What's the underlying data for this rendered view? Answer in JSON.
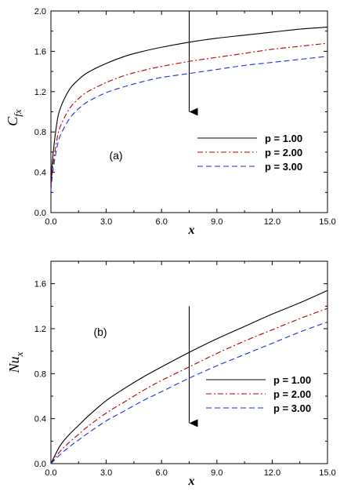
{
  "chart_data": [
    {
      "type": "line",
      "annotation": "(a)",
      "xlabel": "x",
      "ylabel": "C",
      "ylabel_sub": "fx",
      "xlim": [
        0,
        15
      ],
      "ylim": [
        0,
        2.0
      ],
      "xticks": [
        "0.0",
        "3.0",
        "6.0",
        "9.0",
        "12.0",
        "15.0"
      ],
      "yticks": [
        "0.0",
        "0.4",
        "0.8",
        "1.2",
        "1.6",
        "2.0"
      ],
      "legend_position": "center-right",
      "x": [
        0.0,
        0.1,
        0.3,
        0.5,
        1.0,
        1.5,
        2.0,
        3.0,
        4.0,
        5.0,
        6.0,
        7.5,
        9.0,
        10.5,
        12.0,
        13.5,
        15.0
      ],
      "series": [
        {
          "name": "p = 1.00",
          "color": "#000000",
          "dash": "solid",
          "values": [
            0.3,
            0.55,
            0.86,
            1.03,
            1.22,
            1.32,
            1.39,
            1.48,
            1.55,
            1.6,
            1.64,
            1.69,
            1.73,
            1.76,
            1.79,
            1.82,
            1.84
          ]
        },
        {
          "name": "p = 2.00",
          "color": "#b00000",
          "dash": "dashdot",
          "values": [
            0.25,
            0.45,
            0.7,
            0.85,
            1.03,
            1.13,
            1.2,
            1.29,
            1.36,
            1.41,
            1.45,
            1.5,
            1.54,
            1.58,
            1.62,
            1.65,
            1.68
          ]
        },
        {
          "name": "p = 3.00",
          "color": "#1a2fd8",
          "dash": "dashed",
          "values": [
            0.22,
            0.4,
            0.62,
            0.76,
            0.93,
            1.03,
            1.1,
            1.19,
            1.25,
            1.3,
            1.34,
            1.38,
            1.42,
            1.46,
            1.49,
            1.52,
            1.55
          ]
        }
      ],
      "arrow": {
        "x": 7.5,
        "y_from": 2.0,
        "y_to": 1.0
      }
    },
    {
      "type": "line",
      "annotation": "(b)",
      "xlabel": "x",
      "ylabel": "Nu",
      "ylabel_sub": "x",
      "xlim": [
        0,
        15
      ],
      "ylim": [
        0,
        1.8
      ],
      "xticks": [
        "0.0",
        "3.0",
        "6.0",
        "9.0",
        "12.0",
        "15.0"
      ],
      "yticks": [
        "0.0",
        "0.4",
        "0.8",
        "1.2",
        "1.6"
      ],
      "legend_position": "lower-right",
      "x": [
        0.0,
        0.5,
        1.0,
        1.5,
        2.0,
        3.0,
        4.0,
        5.0,
        6.0,
        7.5,
        9.0,
        10.5,
        12.0,
        13.5,
        15.0
      ],
      "series": [
        {
          "name": "p = 1.00",
          "color": "#000000",
          "dash": "solid",
          "values": [
            0.0,
            0.16,
            0.26,
            0.34,
            0.42,
            0.56,
            0.67,
            0.77,
            0.86,
            0.99,
            1.11,
            1.22,
            1.33,
            1.43,
            1.54
          ]
        },
        {
          "name": "p = 2.00",
          "color": "#b00000",
          "dash": "dashdot",
          "values": [
            0.0,
            0.11,
            0.19,
            0.26,
            0.33,
            0.45,
            0.55,
            0.65,
            0.74,
            0.86,
            0.98,
            1.09,
            1.19,
            1.29,
            1.38
          ]
        },
        {
          "name": "p = 3.00",
          "color": "#1a2fd8",
          "dash": "dashed",
          "values": [
            0.0,
            0.08,
            0.15,
            0.21,
            0.27,
            0.38,
            0.47,
            0.56,
            0.64,
            0.76,
            0.87,
            0.97,
            1.07,
            1.17,
            1.26
          ]
        }
      ],
      "arrow": {
        "x": 7.5,
        "y_from": 1.4,
        "y_to": 0.36
      }
    }
  ]
}
